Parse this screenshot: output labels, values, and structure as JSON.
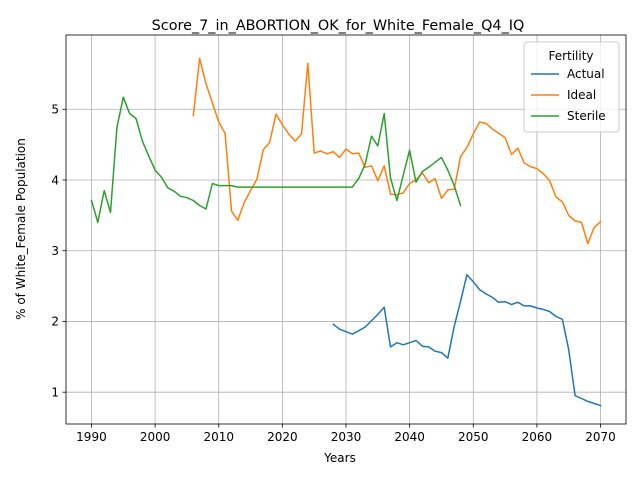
{
  "chart_data": {
    "type": "line",
    "title": "Score_7_in_ABORTION_OK_for_White_Female_Q4_IQ",
    "xlabel": "Years",
    "ylabel": "% of White_Female Population",
    "xlim": [
      1986,
      2074
    ],
    "ylim": [
      0.55,
      6.05
    ],
    "xticks": [
      1990,
      2000,
      2010,
      2020,
      2030,
      2040,
      2050,
      2060,
      2070
    ],
    "yticks": [
      1,
      2,
      3,
      4,
      5
    ],
    "grid": true,
    "legend": {
      "title": "Fertility",
      "placement": "top-right"
    },
    "series": [
      {
        "name": "Actual",
        "color": "#1f77b4",
        "x": [
          2028,
          2029,
          2031,
          2033,
          2035,
          2036,
          2037,
          2038,
          2039,
          2040,
          2041,
          2042,
          2043,
          2044,
          2045,
          2046,
          2047,
          2048,
          2049,
          2050,
          2051,
          2052,
          2053,
          2054,
          2055,
          2056,
          2057,
          2058,
          2059,
          2060,
          2061,
          2062,
          2063,
          2064,
          2065,
          2066,
          2067,
          2068,
          2069,
          2070
        ],
        "values": [
          1.96,
          1.89,
          1.82,
          1.92,
          2.1,
          2.2,
          1.64,
          1.7,
          1.67,
          1.7,
          1.73,
          1.65,
          1.64,
          1.58,
          1.56,
          1.48,
          1.93,
          2.28,
          2.66,
          2.56,
          2.45,
          2.39,
          2.34,
          2.27,
          2.28,
          2.24,
          2.27,
          2.22,
          2.22,
          2.19,
          2.17,
          2.14,
          2.07,
          2.03,
          1.6,
          0.95,
          0.91,
          0.87,
          0.84,
          0.81
        ]
      },
      {
        "name": "Ideal",
        "color": "#ff7f0e",
        "x": [
          2006,
          2007,
          2008,
          2009,
          2010,
          2011,
          2012,
          2013,
          2014,
          2015,
          2016,
          2017,
          2018,
          2019,
          2020,
          2021,
          2022,
          2023,
          2024,
          2025,
          2026,
          2027,
          2028,
          2029,
          2030,
          2031,
          2032,
          2033,
          2034,
          2035,
          2036,
          2037,
          2038,
          2039,
          2040,
          2041,
          2042,
          2043,
          2044,
          2045,
          2046,
          2047,
          2048,
          2049,
          2050,
          2051,
          2052,
          2053,
          2054,
          2055,
          2056,
          2057,
          2058,
          2059,
          2060,
          2061,
          2062,
          2063,
          2064,
          2065,
          2066,
          2067,
          2068,
          2069,
          2070
        ],
        "values": [
          4.91,
          5.72,
          5.36,
          5.09,
          4.82,
          4.66,
          3.56,
          3.43,
          3.68,
          3.85,
          4.01,
          4.43,
          4.53,
          4.93,
          4.78,
          4.65,
          4.55,
          4.65,
          5.65,
          4.38,
          4.41,
          4.37,
          4.4,
          4.32,
          4.44,
          4.37,
          4.38,
          4.18,
          4.2,
          3.99,
          4.2,
          3.8,
          3.79,
          3.82,
          3.95,
          4.0,
          4.1,
          3.96,
          4.02,
          3.74,
          3.86,
          3.87,
          4.33,
          4.46,
          4.65,
          4.82,
          4.8,
          4.72,
          4.66,
          4.6,
          4.36,
          4.45,
          4.24,
          4.19,
          4.16,
          4.09,
          3.99,
          3.76,
          3.69,
          3.5,
          3.42,
          3.4,
          3.1,
          3.33,
          3.41
        ]
      },
      {
        "name": "Sterile",
        "color": "#2ca02c",
        "x": [
          1990,
          1991,
          1992,
          1993,
          1994,
          1995,
          1996,
          1997,
          1998,
          1999,
          2000,
          2001,
          2002,
          2003,
          2004,
          2005,
          2006,
          2007,
          2008,
          2009,
          2010,
          2011,
          2012,
          2013,
          2014,
          2015,
          2016,
          2017,
          2018,
          2019,
          2020,
          2021,
          2022,
          2023,
          2024,
          2025,
          2026,
          2027,
          2028,
          2029,
          2030,
          2031,
          2032,
          2033,
          2034,
          2035,
          2036,
          2037,
          2038,
          2039,
          2040,
          2041,
          2042,
          2043,
          2044,
          2045,
          2046,
          2047,
          2048
        ],
        "values": [
          3.71,
          3.4,
          3.85,
          3.54,
          4.74,
          5.17,
          4.94,
          4.87,
          4.55,
          4.34,
          4.14,
          4.04,
          3.89,
          3.84,
          3.77,
          3.75,
          3.71,
          3.64,
          3.59,
          3.95,
          3.92,
          3.92,
          3.92,
          3.9,
          3.9,
          3.9,
          3.9,
          3.9,
          3.9,
          3.9,
          3.9,
          3.9,
          3.9,
          3.9,
          3.9,
          3.9,
          3.9,
          3.9,
          3.9,
          3.9,
          3.9,
          3.9,
          4.02,
          4.22,
          4.62,
          4.48,
          4.94,
          4.03,
          3.71,
          4.07,
          4.42,
          3.97,
          4.12,
          4.18,
          4.25,
          4.32,
          4.14,
          3.92,
          3.64
        ]
      }
    ]
  }
}
